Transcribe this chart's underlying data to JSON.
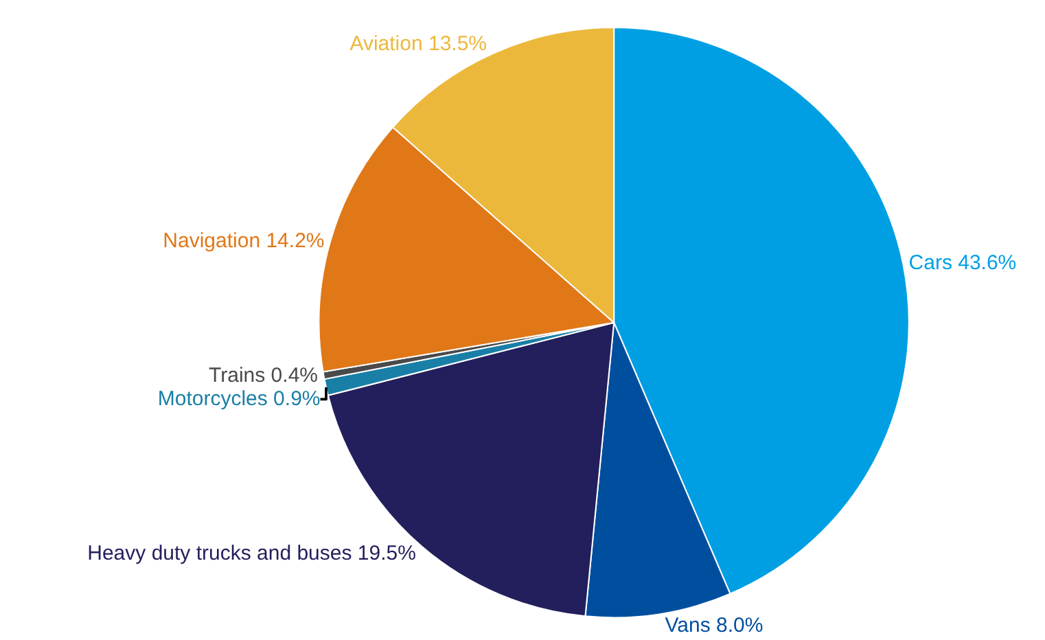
{
  "chart_data": {
    "type": "pie",
    "categories": [
      "Cars",
      "Vans",
      "Heavy duty trucks and buses",
      "Motorcycles",
      "Trains",
      "Navigation",
      "Aviation"
    ],
    "values": [
      43.6,
      8.0,
      19.5,
      0.9,
      0.4,
      14.2,
      13.5
    ],
    "value_labels": [
      "43.6%",
      "8.0%",
      "19.5%",
      "0.9%",
      "0.4%",
      "14.2%",
      "13.5%"
    ],
    "colors": [
      "#009fe3",
      "#004f9f",
      "#231f5c",
      "#1a7fa6",
      "#4a4a4a",
      "#e07818",
      "#ecb83c"
    ],
    "legend": false
  }
}
